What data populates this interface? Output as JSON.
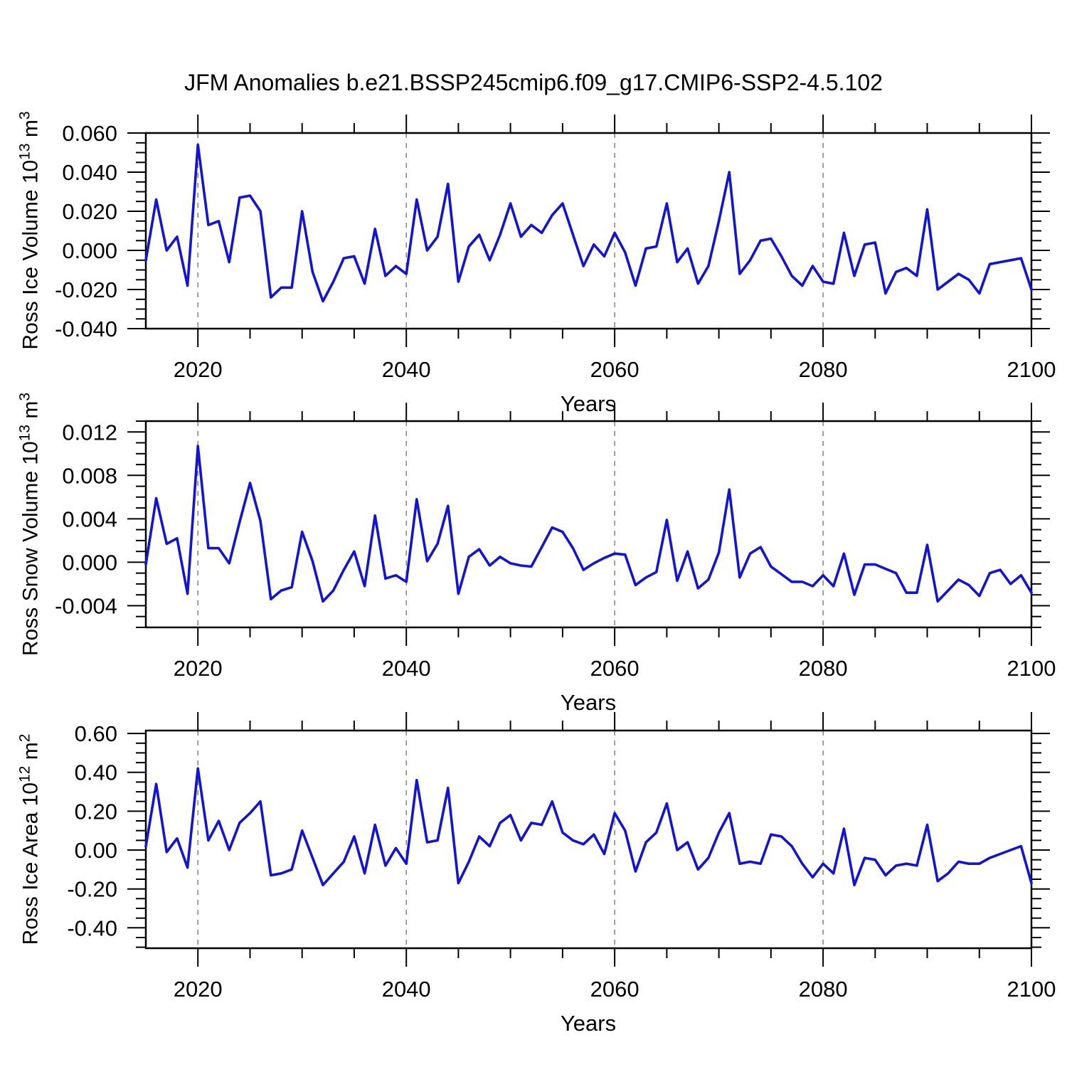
{
  "page": {
    "background": "#ffffff"
  },
  "chart_data": {
    "type": "line",
    "title": "JFM Anomalies b.e21.BSSP245cmip6.f09_g17.CMIP6-SSP2-4.5.102",
    "x_label": "Years",
    "line_color": "#1313d3",
    "grid_color": "#7a7a7a",
    "grid_style": "dashed-vertical",
    "xlim": [
      2015,
      2100
    ],
    "x_ticks": {
      "values": [
        2020,
        2040,
        2060,
        2080,
        2100
      ],
      "labels": [
        "2020",
        "2040",
        "2060",
        "2080",
        "2100"
      ],
      "minor_step": 5,
      "gridlines": [
        2020,
        2040,
        2060,
        2080
      ]
    },
    "years": [
      2015,
      2016,
      2017,
      2018,
      2019,
      2020,
      2021,
      2022,
      2023,
      2024,
      2025,
      2026,
      2027,
      2028,
      2029,
      2030,
      2031,
      2032,
      2033,
      2034,
      2035,
      2036,
      2037,
      2038,
      2039,
      2040,
      2041,
      2042,
      2043,
      2044,
      2045,
      2046,
      2047,
      2048,
      2049,
      2050,
      2051,
      2052,
      2053,
      2054,
      2055,
      2056,
      2057,
      2058,
      2059,
      2060,
      2061,
      2062,
      2063,
      2064,
      2065,
      2066,
      2067,
      2068,
      2069,
      2070,
      2071,
      2072,
      2073,
      2074,
      2075,
      2076,
      2077,
      2078,
      2079,
      2080,
      2081,
      2082,
      2083,
      2084,
      2085,
      2086,
      2087,
      2088,
      2089,
      2090,
      2091,
      2092,
      2093,
      2094,
      2095,
      2096,
      2097,
      2098,
      2099,
      2100
    ],
    "panels": [
      {
        "id": "ross-ice-volume",
        "ylabel": {
          "prefix": "Ross Ice Volume 10",
          "exp": "13",
          "unit": " m",
          "unit_exp": "3"
        },
        "ylabel_text": "Ross Ice Volume 10^13 m^3",
        "ylim": [
          -0.04,
          0.06
        ],
        "yticks": [
          -0.04,
          -0.02,
          0.0,
          0.02,
          0.04,
          0.06
        ],
        "ytick_labels": [
          "-0.040",
          "-0.020",
          "0.000",
          "0.020",
          "0.040",
          "0.060"
        ],
        "y_minor_step": 0.005,
        "values": [
          -0.005,
          0.026,
          0.0,
          0.007,
          -0.018,
          0.054,
          0.013,
          0.015,
          -0.006,
          0.027,
          0.028,
          0.02,
          -0.024,
          -0.019,
          -0.019,
          0.02,
          -0.011,
          -0.026,
          -0.016,
          -0.004,
          -0.003,
          -0.017,
          0.011,
          -0.013,
          -0.008,
          -0.012,
          0.026,
          0.0,
          0.007,
          0.034,
          -0.016,
          0.002,
          0.008,
          -0.005,
          0.008,
          0.024,
          0.007,
          0.013,
          0.009,
          0.018,
          0.024,
          0.008,
          -0.008,
          0.003,
          -0.003,
          0.009,
          -0.001,
          -0.018,
          0.001,
          0.002,
          0.024,
          -0.006,
          0.001,
          -0.017,
          -0.008,
          0.015,
          0.04,
          -0.012,
          -0.005,
          0.005,
          0.006,
          -0.003,
          -0.013,
          -0.018,
          -0.008,
          -0.016,
          -0.017,
          0.009,
          -0.013,
          0.003,
          0.004,
          -0.022,
          -0.011,
          -0.009,
          -0.013,
          0.021,
          -0.02,
          -0.016,
          -0.012,
          -0.015,
          -0.022,
          -0.007,
          -0.006,
          -0.005,
          -0.004,
          -0.02
        ]
      },
      {
        "id": "ross-snow-volume",
        "ylabel": {
          "prefix": "Ross Snow Volume 10",
          "exp": "13",
          "unit": " m",
          "unit_exp": "3"
        },
        "ylabel_text": "Ross Snow Volume 10^13 m^3",
        "ylim": [
          -0.006,
          0.013
        ],
        "yticks": [
          -0.004,
          0.0,
          0.004,
          0.008,
          0.012
        ],
        "ytick_labels": [
          "-0.004",
          "0.000",
          "0.004",
          "0.008",
          "0.012"
        ],
        "y_minor_step": 0.001,
        "values": [
          -0.0002,
          0.0059,
          0.0017,
          0.0022,
          -0.0029,
          0.0107,
          0.0013,
          0.0013,
          -0.0001,
          0.0037,
          0.0073,
          0.0038,
          -0.0034,
          -0.0026,
          -0.0023,
          0.0028,
          0.0001,
          -0.0036,
          -0.0026,
          -0.0007,
          0.001,
          -0.0022,
          0.0043,
          -0.0015,
          -0.0012,
          -0.0018,
          0.0058,
          0.0001,
          0.0017,
          0.0052,
          -0.0029,
          0.0005,
          0.0012,
          -0.0003,
          0.0005,
          -0.0001,
          -0.0003,
          -0.0004,
          0.0014,
          0.0032,
          0.0028,
          0.0013,
          -0.0007,
          -0.0001,
          0.0004,
          0.0008,
          0.0007,
          -0.0021,
          -0.0014,
          -0.0009,
          0.0039,
          -0.0017,
          0.001,
          -0.0024,
          -0.0016,
          0.0009,
          0.0067,
          -0.0014,
          0.0008,
          0.0014,
          -0.0004,
          -0.0011,
          -0.0018,
          -0.0018,
          -0.0022,
          -0.0012,
          -0.0022,
          0.0008,
          -0.003,
          -0.0002,
          -0.0002,
          -0.0006,
          -0.001,
          -0.0028,
          -0.0028,
          0.0016,
          -0.0036,
          -0.0026,
          -0.0016,
          -0.0021,
          -0.0031,
          -0.001,
          -0.0007,
          -0.002,
          -0.0012,
          -0.0028
        ]
      },
      {
        "id": "ross-ice-area",
        "ylabel": {
          "prefix": "Ross Ice Area 10",
          "exp": "12",
          "unit": " m",
          "unit_exp": "2"
        },
        "ylabel_text": "Ross Ice Area 10^12 m^2",
        "ylim": [
          -0.505,
          0.615
        ],
        "yticks": [
          -0.4,
          -0.2,
          0.0,
          0.2,
          0.4,
          0.6
        ],
        "ytick_labels": [
          "-0.40",
          "-0.20",
          "0.00",
          "0.20",
          "0.40",
          "0.60"
        ],
        "y_minor_step": 0.05,
        "values": [
          0.02,
          0.34,
          -0.01,
          0.06,
          -0.09,
          0.42,
          0.05,
          0.15,
          0.0,
          0.14,
          0.19,
          0.25,
          -0.13,
          -0.12,
          -0.1,
          0.1,
          -0.04,
          -0.18,
          -0.12,
          -0.06,
          0.07,
          -0.12,
          0.13,
          -0.08,
          0.01,
          -0.07,
          0.36,
          0.04,
          0.05,
          0.32,
          -0.17,
          -0.06,
          0.07,
          0.02,
          0.14,
          0.18,
          0.05,
          0.14,
          0.13,
          0.25,
          0.09,
          0.05,
          0.03,
          0.08,
          -0.02,
          0.19,
          0.1,
          -0.11,
          0.04,
          0.09,
          0.24,
          0.0,
          0.04,
          -0.1,
          -0.04,
          0.09,
          0.19,
          -0.07,
          -0.06,
          -0.07,
          0.08,
          0.07,
          0.02,
          -0.07,
          -0.14,
          -0.07,
          -0.12,
          0.11,
          -0.18,
          -0.04,
          -0.05,
          -0.13,
          -0.08,
          -0.07,
          -0.08,
          0.13,
          -0.16,
          -0.12,
          -0.06,
          -0.07,
          -0.07,
          -0.04,
          -0.02,
          0.0,
          0.02,
          -0.17
        ]
      }
    ]
  }
}
